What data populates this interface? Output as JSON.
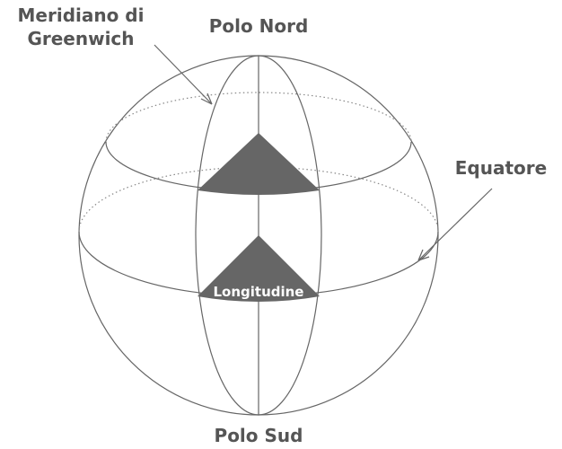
{
  "labels": {
    "meridian": [
      "Meridiano di",
      "Greenwich"
    ],
    "north_pole": "Polo Nord",
    "south_pole": "Polo Sud",
    "equator": "Equatore",
    "longitude": "Longitudine"
  }
}
